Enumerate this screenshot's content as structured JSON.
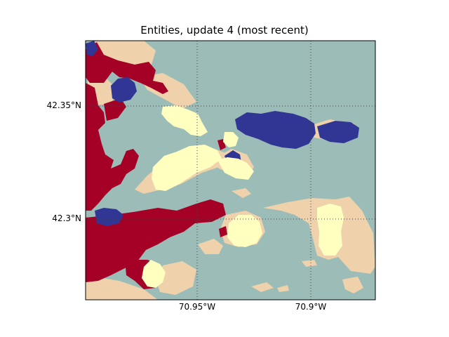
{
  "title": "Entities, update 4 (most recent)",
  "colors": {
    "water": "#9bbcb7",
    "land": "#efd2ab",
    "red_entity": "#a50026",
    "blue_entity": "#313695",
    "yellow_entity": "#ffffbf",
    "grid": "#444444"
  },
  "axes": {
    "y_ticks": [
      "42.35°N",
      "42.3°N"
    ],
    "x_ticks": [
      "70.95°W",
      "70.9°W"
    ],
    "grid": "dotted"
  }
}
